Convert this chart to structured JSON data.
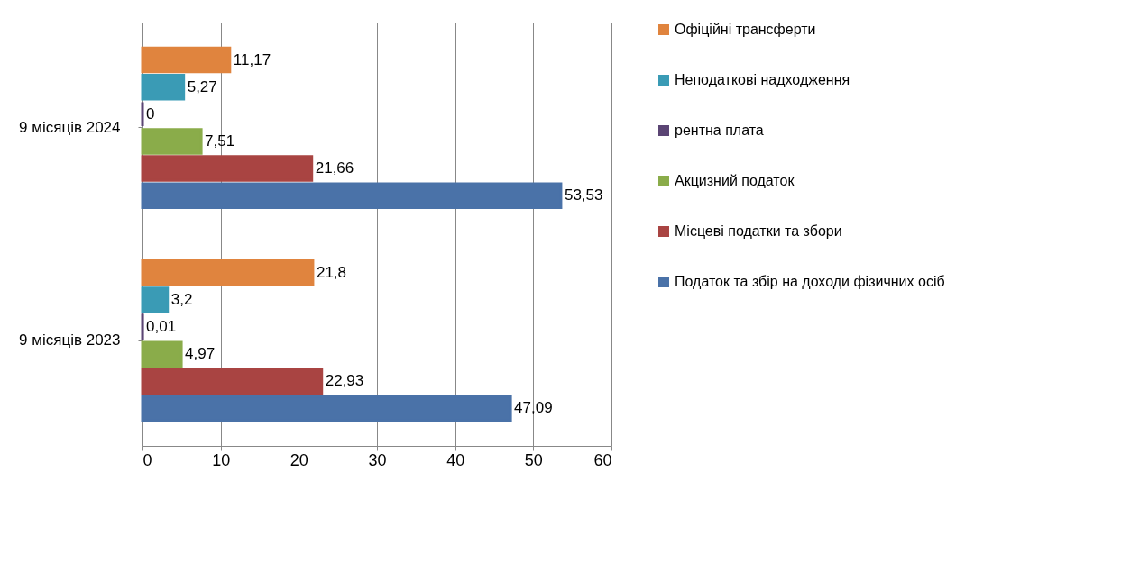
{
  "chart_data": {
    "type": "bar",
    "orientation": "horizontal",
    "categories": [
      "9 місяців  2024",
      "9 місяців  2023"
    ],
    "series": [
      {
        "name": "Офіційні трансферти",
        "color": "#e0843e",
        "values": [
          11.17,
          21.8
        ],
        "value_labels": [
          "11,17",
          "21,8"
        ]
      },
      {
        "name": "Неподаткові надходження",
        "color": "#3a9bb5",
        "values": [
          5.27,
          3.2
        ],
        "value_labels": [
          "5,27",
          "3,2"
        ]
      },
      {
        "name": "рентна  плата",
        "color": "#5b4574",
        "values": [
          0,
          0.01
        ],
        "value_labels": [
          "0",
          "0,01"
        ]
      },
      {
        "name": "Акцизний податок",
        "color": "#8aac4a",
        "values": [
          7.51,
          4.97
        ],
        "value_labels": [
          "7,51",
          "4,97"
        ]
      },
      {
        "name": "Місцеві податки та збори",
        "color": "#a94442",
        "values": [
          21.66,
          22.93
        ],
        "value_labels": [
          "21,66",
          "22,93"
        ]
      },
      {
        "name": "Податок  та збір на доходи фізичних осіб",
        "color": "#4a72a8",
        "values": [
          53.53,
          47.09
        ],
        "value_labels": [
          "53,53",
          "47,09"
        ]
      }
    ],
    "xlim": [
      0,
      60
    ],
    "xticks": [
      0,
      10,
      20,
      30,
      40,
      50,
      60
    ],
    "grid": "x",
    "legend": "right"
  }
}
